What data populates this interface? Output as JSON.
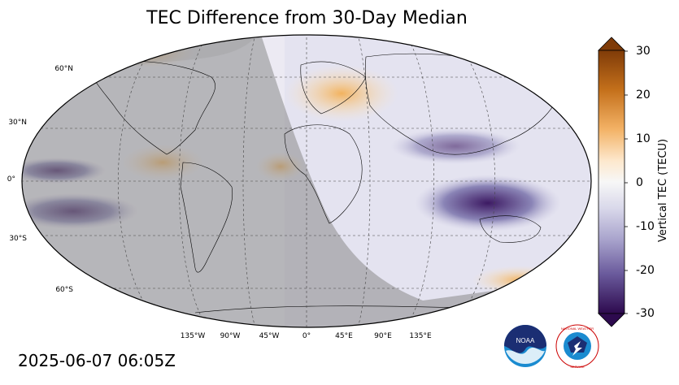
{
  "title": "TEC Difference from 30-Day Median",
  "timestamp": "2025-06-07 06:05Z",
  "map": {
    "latitude_labels": [
      "60°N",
      "30°N",
      "0°",
      "30°S",
      "60°S"
    ],
    "longitude_labels": [
      "135°W",
      "90°W",
      "45°W",
      "0°",
      "45°E",
      "90°E",
      "135°E"
    ],
    "projection": "Robinson",
    "nightside": "western hemisphere shaded gray"
  },
  "colorbar": {
    "label": "Vertical TEC (TECU)",
    "ticks": [
      "30",
      "20",
      "10",
      "0",
      "-10",
      "-20",
      "-30"
    ],
    "min": -30,
    "max": 30,
    "colors": [
      "#2d0a4e",
      "#f7f7f7",
      "#7f3b08"
    ]
  },
  "logos": {
    "noaa_text": "NOAA",
    "nws_text": "NATIONAL WEATHER SERVICE"
  }
}
